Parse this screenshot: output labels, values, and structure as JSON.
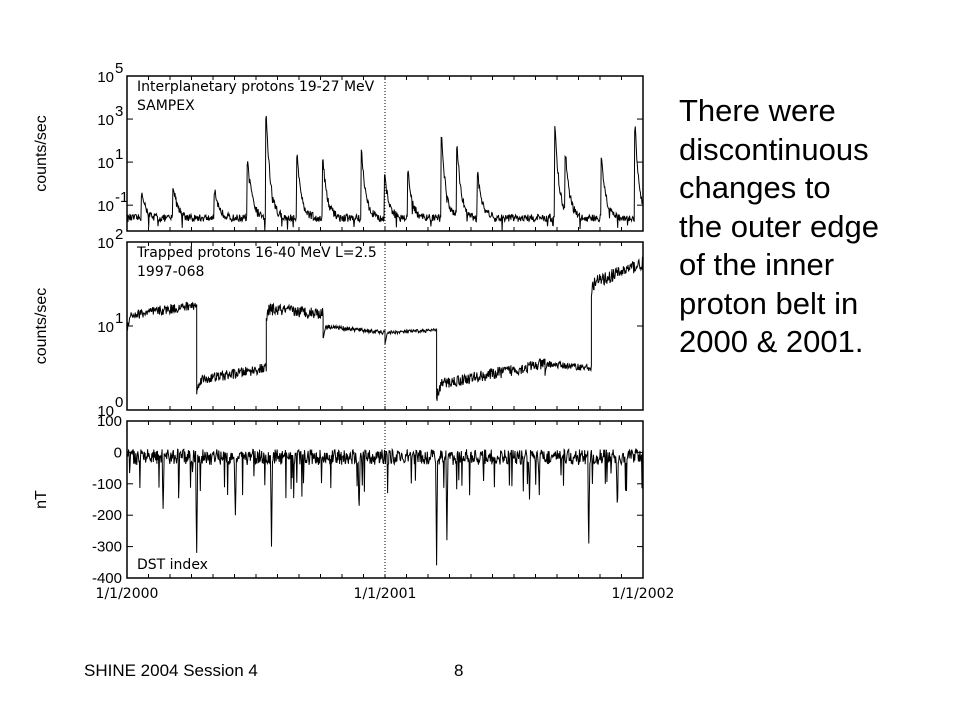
{
  "slide": {
    "text": "There were\ndiscontinuous\nchanges to\nthe outer edge\nof the inner\nproton belt in\n2000 & 2001.",
    "footer_left": "SHINE 2004 Session 4",
    "page_number": "8"
  },
  "chart_data": [
    {
      "type": "line",
      "annotation": [
        "Interplanetary protons 19-27 MeV",
        "SAMPEX"
      ],
      "ylabel": "counts/sec",
      "yscale": "log",
      "ylim_exp": [
        -2.2,
        5
      ],
      "yticks": [
        {
          "base": "10",
          "exp": "5",
          "value_exp": 5
        },
        {
          "base": "10",
          "exp": "3",
          "value_exp": 3
        },
        {
          "base": "10",
          "exp": "1",
          "value_exp": 1
        },
        {
          "base": "10",
          "exp": "-1",
          "value_exp": -1
        }
      ],
      "baseline_exp": -1.6,
      "spikes": [
        {
          "t": 0.03,
          "peak_exp": -0.6
        },
        {
          "t": 0.09,
          "peak_exp": -0.1
        },
        {
          "t": 0.17,
          "peak_exp": -0.3
        },
        {
          "t": 0.235,
          "peak_exp": 0.9
        },
        {
          "t": 0.27,
          "peak_exp": 3.2
        },
        {
          "t": 0.33,
          "peak_exp": 1.4
        },
        {
          "t": 0.38,
          "peak_exp": 1.1
        },
        {
          "t": 0.455,
          "peak_exp": 1.4
        },
        {
          "t": 0.5,
          "peak_exp": 0.3
        },
        {
          "t": 0.545,
          "peak_exp": 0.5
        },
        {
          "t": 0.61,
          "peak_exp": 2.1
        },
        {
          "t": 0.64,
          "peak_exp": 1.7
        },
        {
          "t": 0.68,
          "peak_exp": 0.4
        },
        {
          "t": 0.83,
          "peak_exp": 2.5
        },
        {
          "t": 0.85,
          "peak_exp": 1.4
        },
        {
          "t": 0.92,
          "peak_exp": 1.2
        },
        {
          "t": 0.985,
          "peak_exp": 2.6
        }
      ]
    },
    {
      "type": "line",
      "annotation": [
        "Trapped protons 16-40 MeV L=2.5",
        "1997-068"
      ],
      "ylabel": "counts/sec",
      "yscale": "log",
      "ylim_exp": [
        0,
        2
      ],
      "yticks": [
        {
          "base": "10",
          "exp": "2",
          "value_exp": 2
        },
        {
          "base": "10",
          "exp": "1",
          "value_exp": 1
        },
        {
          "base": "10",
          "exp": "0",
          "value_exp": 0
        }
      ],
      "segments": [
        {
          "t0": 0.0,
          "t1": 0.135,
          "v0": 1.12,
          "v1": 1.25,
          "noise": 0.06
        },
        {
          "t0": 0.135,
          "t1": 0.27,
          "v0": 0.35,
          "v1": 0.5,
          "noise": 0.06
        },
        {
          "t0": 0.27,
          "t1": 0.38,
          "v0": 1.2,
          "v1": 1.15,
          "noise": 0.07
        },
        {
          "t0": 0.38,
          "t1": 0.5,
          "v0": 1.0,
          "v1": 0.92,
          "noise": 0.025
        },
        {
          "t0": 0.5,
          "t1": 0.6,
          "v0": 0.92,
          "v1": 0.95,
          "noise": 0.02
        },
        {
          "t0": 0.6,
          "t1": 0.81,
          "v0": 0.3,
          "v1": 0.55,
          "noise": 0.07
        },
        {
          "t0": 0.81,
          "t1": 0.9,
          "v0": 0.55,
          "v1": 0.5,
          "noise": 0.04
        },
        {
          "t0": 0.9,
          "t1": 1.0,
          "v0": 1.5,
          "v1": 1.75,
          "noise": 0.08
        }
      ]
    },
    {
      "type": "line",
      "annotation": [
        "DST index"
      ],
      "ylabel": "nT",
      "yscale": "linear",
      "ylim": [
        -400,
        100
      ],
      "yticks": [
        {
          "label": "100",
          "value": 100
        },
        {
          "label": "0",
          "value": 0
        },
        {
          "label": "-100",
          "value": -100
        },
        {
          "label": "-200",
          "value": -200
        },
        {
          "label": "-300",
          "value": -300
        },
        {
          "label": "-400",
          "value": -400
        }
      ],
      "storms": [
        {
          "t": 0.135,
          "min": -320
        },
        {
          "t": 0.28,
          "min": -300
        },
        {
          "t": 0.6,
          "min": -360
        },
        {
          "t": 0.62,
          "min": -280
        },
        {
          "t": 0.895,
          "min": -290
        },
        {
          "t": 0.78,
          "min": -150
        },
        {
          "t": 0.21,
          "min": -200
        },
        {
          "t": 0.07,
          "min": -180
        },
        {
          "t": 0.45,
          "min": -170
        },
        {
          "t": 0.95,
          "min": -160
        }
      ]
    }
  ],
  "x_axis": {
    "labels": [
      "1/1/2000",
      "1/1/2001",
      "1/1/2002"
    ],
    "label_positions": [
      0,
      0.5,
      1
    ],
    "marker_at": 0.5
  }
}
